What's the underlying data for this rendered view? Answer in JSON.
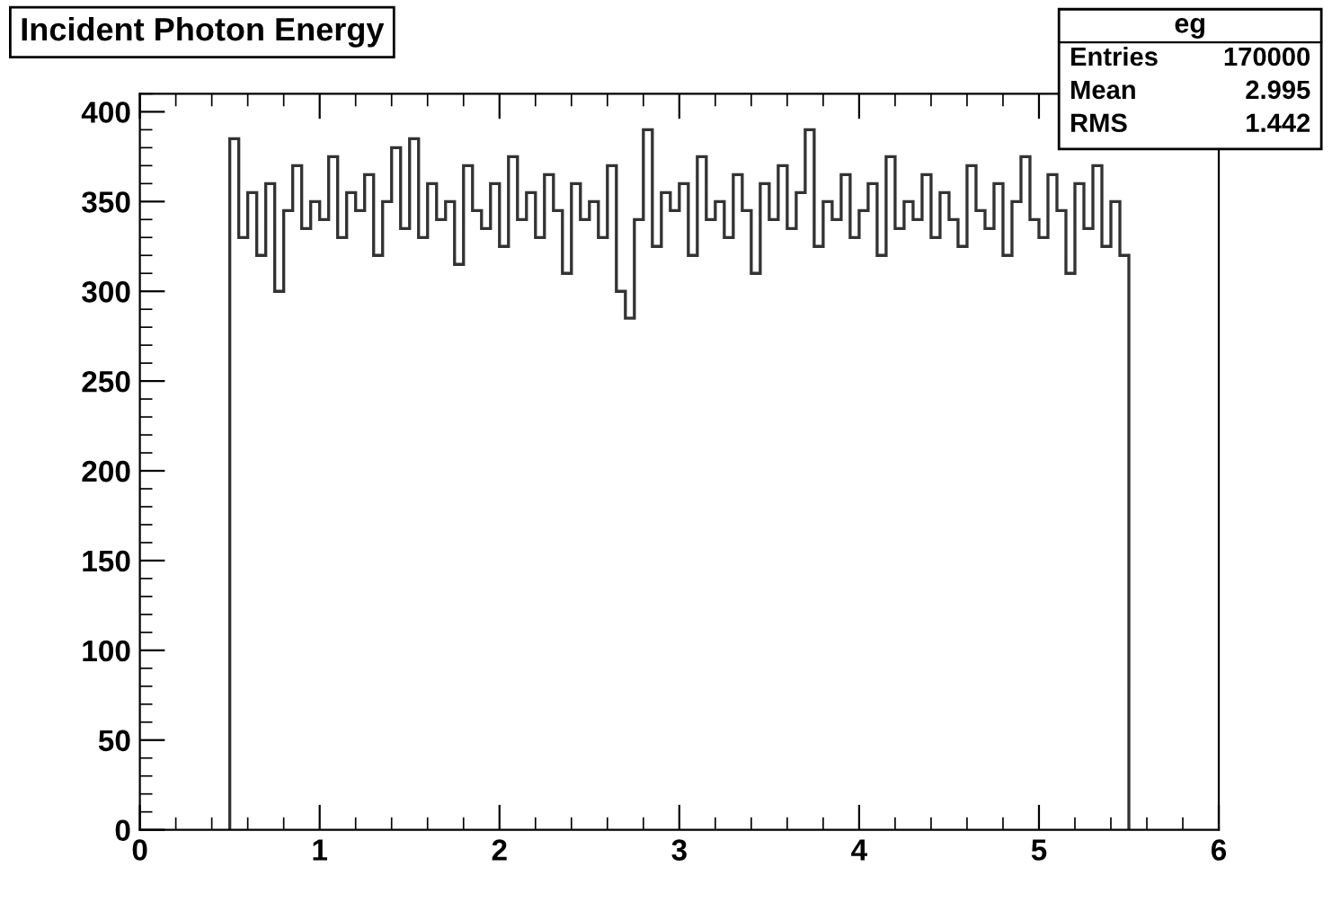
{
  "chart_data": {
    "type": "histogram",
    "title": "Incident Photon Energy",
    "bins": [
      0.5,
      0.55,
      0.6,
      0.65,
      0.7,
      0.75,
      0.8,
      0.85,
      0.9,
      0.95,
      1.0,
      1.05,
      1.1,
      1.15,
      1.2,
      1.25,
      1.3,
      1.35,
      1.4,
      1.45,
      1.5,
      1.55,
      1.6,
      1.65,
      1.7,
      1.75,
      1.8,
      1.85,
      1.9,
      1.95,
      2.0,
      2.05,
      2.1,
      2.15,
      2.2,
      2.25,
      2.3,
      2.35,
      2.4,
      2.45,
      2.5,
      2.55,
      2.6,
      2.65,
      2.7,
      2.75,
      2.8,
      2.85,
      2.9,
      2.95,
      3.0,
      3.05,
      3.1,
      3.15,
      3.2,
      3.25,
      3.3,
      3.35,
      3.4,
      3.45,
      3.5,
      3.55,
      3.6,
      3.65,
      3.7,
      3.75,
      3.8,
      3.85,
      3.9,
      3.95,
      4.0,
      4.05,
      4.1,
      4.15,
      4.2,
      4.25,
      4.3,
      4.35,
      4.4,
      4.45,
      4.5,
      4.55,
      4.6,
      4.65,
      4.7,
      4.75,
      4.8,
      4.85,
      4.9,
      4.95,
      5.0,
      5.05,
      5.1,
      5.15,
      5.2,
      5.25,
      5.3,
      5.35,
      5.4,
      5.45,
      5.5
    ],
    "values": [
      385,
      330,
      355,
      320,
      360,
      300,
      345,
      370,
      335,
      350,
      340,
      375,
      330,
      355,
      345,
      365,
      320,
      350,
      380,
      335,
      385,
      330,
      360,
      340,
      350,
      315,
      370,
      345,
      335,
      360,
      325,
      375,
      340,
      355,
      330,
      365,
      345,
      310,
      360,
      340,
      350,
      330,
      370,
      300,
      285,
      340,
      390,
      325,
      355,
      345,
      360,
      320,
      375,
      340,
      350,
      330,
      365,
      345,
      310,
      360,
      340,
      370,
      335,
      355,
      390,
      325,
      350,
      340,
      365,
      330,
      345,
      360,
      320,
      375,
      335,
      350,
      340,
      365,
      330,
      355,
      340,
      325,
      370,
      345,
      335,
      360,
      320,
      350,
      375,
      340,
      330,
      365,
      345,
      310,
      360,
      335,
      370,
      325,
      350,
      320
    ],
    "color": "#333333",
    "xlim": [
      0,
      6
    ],
    "xticks": [
      0,
      1,
      2,
      3,
      4,
      5,
      6
    ],
    "ylim": [
      0,
      410
    ],
    "yticks": [
      0,
      50,
      100,
      150,
      200,
      250,
      300,
      350,
      400
    ],
    "grid": false,
    "annotations": [
      "eg",
      "Entries",
      "170000",
      "Mean",
      "2.995",
      "RMS",
      "1.442"
    ]
  }
}
